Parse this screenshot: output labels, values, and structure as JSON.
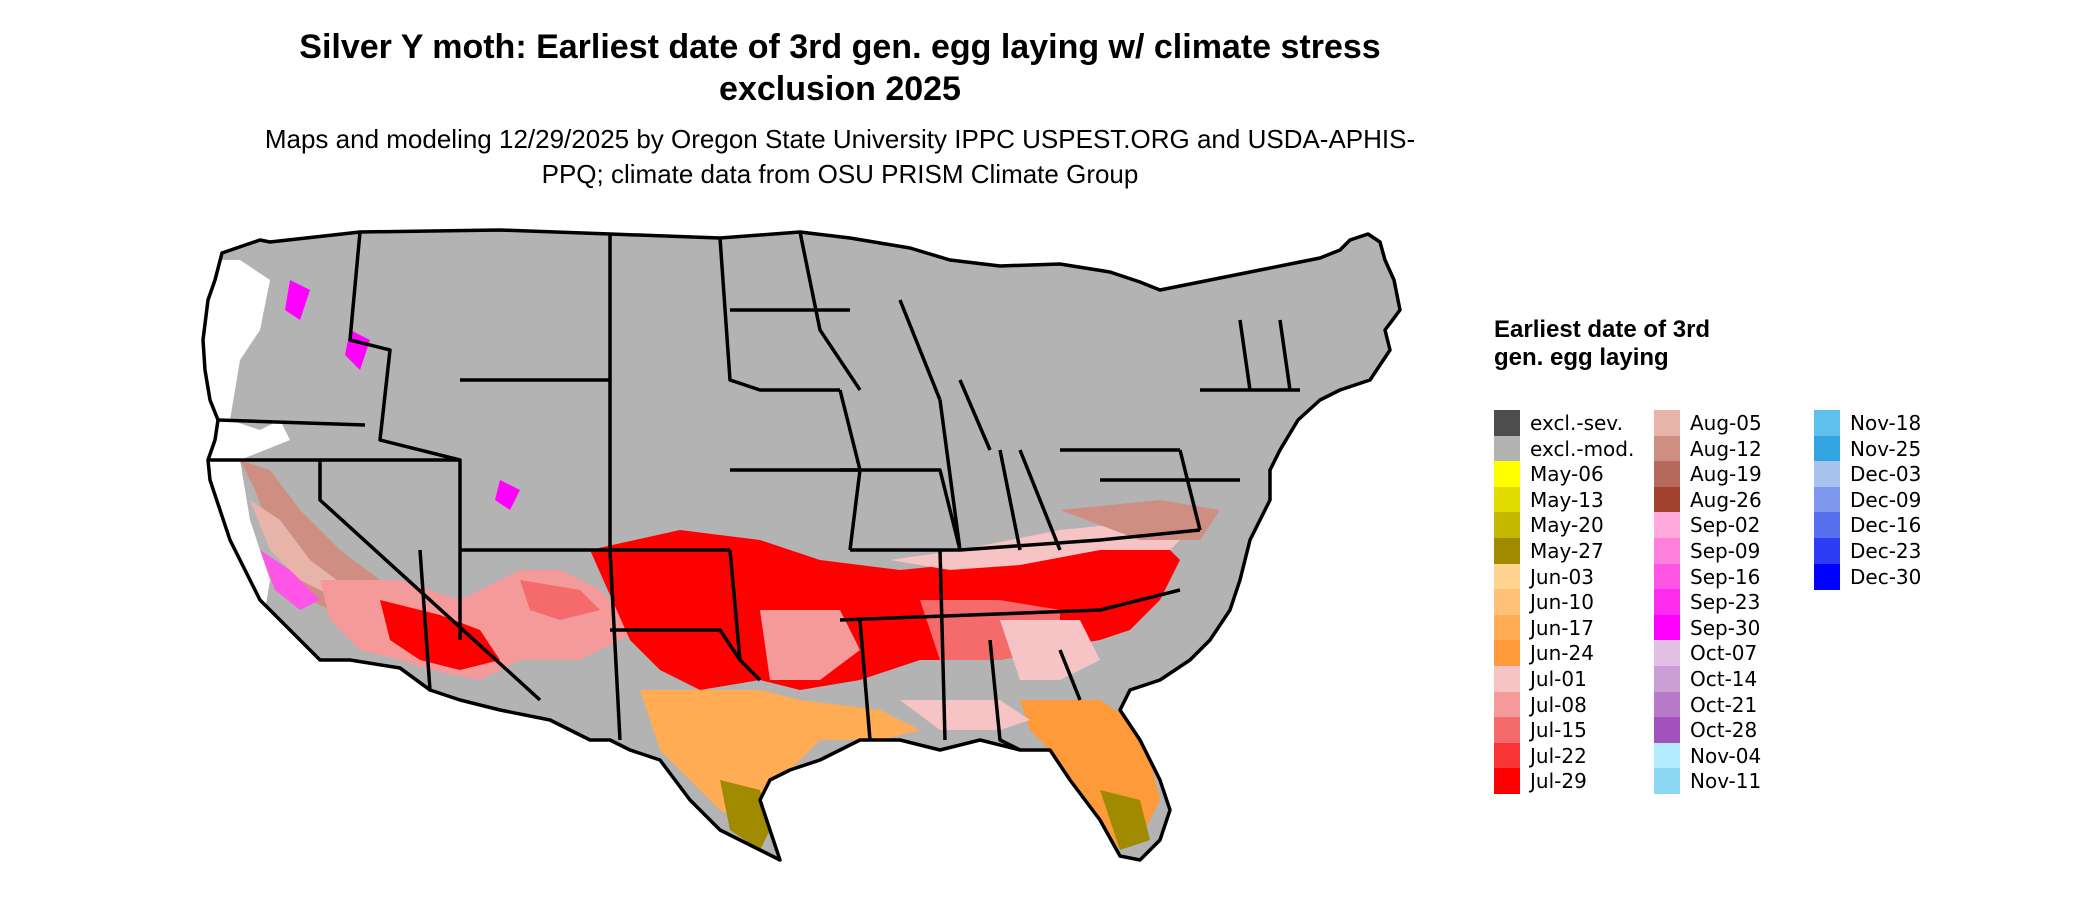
{
  "title": "Silver Y moth: Earliest date of 3rd gen. egg laying w/ climate stress exclusion 2025",
  "subtitle": "Maps and modeling 12/29/2025 by Oregon State University IPPC USPEST.ORG and USDA-APHIS-PPQ; climate data from OSU PRISM Climate Group",
  "legend": {
    "title": "Earliest date of 3rd gen. egg laying",
    "columns": [
      [
        {
          "label": "excl.-sev.",
          "color": "#4d4d4d"
        },
        {
          "label": "excl.-mod.",
          "color": "#b3b3b3"
        },
        {
          "label": "May-06",
          "color": "#ffff00"
        },
        {
          "label": "May-13",
          "color": "#e2dc00"
        },
        {
          "label": "May-20",
          "color": "#c4b800"
        },
        {
          "label": "May-27",
          "color": "#a08a00"
        },
        {
          "label": "Jun-03",
          "color": "#ffd48e"
        },
        {
          "label": "Jun-10",
          "color": "#ffc175"
        },
        {
          "label": "Jun-17",
          "color": "#ffac54"
        },
        {
          "label": "Jun-24",
          "color": "#ff9a3a"
        },
        {
          "label": "Jul-01",
          "color": "#f6c4c4"
        },
        {
          "label": "Jul-08",
          "color": "#f59a9a"
        },
        {
          "label": "Jul-15",
          "color": "#f56a6a"
        },
        {
          "label": "Jul-22",
          "color": "#f93434"
        },
        {
          "label": "Jul-29",
          "color": "#ff0000"
        }
      ],
      [
        {
          "label": "Aug-05",
          "color": "#e8b4aa"
        },
        {
          "label": "Aug-12",
          "color": "#cf8e82"
        },
        {
          "label": "Aug-19",
          "color": "#b66a5c"
        },
        {
          "label": "Aug-26",
          "color": "#a0422e"
        },
        {
          "label": "Sep-02",
          "color": "#ffaadd"
        },
        {
          "label": "Sep-09",
          "color": "#ff80dc"
        },
        {
          "label": "Sep-16",
          "color": "#ff55e6"
        },
        {
          "label": "Sep-23",
          "color": "#ff2bee"
        },
        {
          "label": "Sep-30",
          "color": "#ff00ff"
        },
        {
          "label": "Oct-07",
          "color": "#e2c0e6"
        },
        {
          "label": "Oct-14",
          "color": "#cc9ed6"
        },
        {
          "label": "Oct-21",
          "color": "#b77ac8"
        },
        {
          "label": "Oct-28",
          "color": "#a251bd"
        },
        {
          "label": "Nov-04",
          "color": "#b4ecff"
        },
        {
          "label": "Nov-11",
          "color": "#8cd8f5"
        }
      ],
      [
        {
          "label": "Nov-18",
          "color": "#5ec0ec"
        },
        {
          "label": "Nov-25",
          "color": "#32a4e0"
        },
        {
          "label": "Dec-03",
          "color": "#a8c4ee"
        },
        {
          "label": "Dec-09",
          "color": "#7e98ee"
        },
        {
          "label": "Dec-16",
          "color": "#5670ee"
        },
        {
          "label": "Dec-23",
          "color": "#2c3cf4"
        },
        {
          "label": "Dec-30",
          "color": "#0000ff"
        }
      ]
    ]
  }
}
